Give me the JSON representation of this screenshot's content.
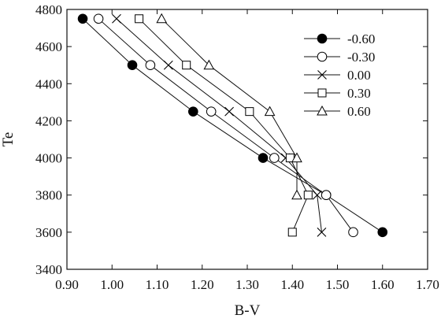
{
  "chart_data": {
    "type": "line",
    "title": "",
    "xlabel": "B-V",
    "ylabel": "Te",
    "xlim": [
      0.9,
      1.7
    ],
    "ylim": [
      3400,
      4800
    ],
    "xticks": [
      "0.90",
      "1.00",
      "1.10",
      "1.20",
      "1.30",
      "1.40",
      "1.50",
      "1.60",
      "1.70"
    ],
    "yticks": [
      "3400",
      "3600",
      "3800",
      "4000",
      "4200",
      "4400",
      "4600",
      "4800"
    ],
    "grid": false,
    "legend_position": "top-right",
    "series": [
      {
        "name": "-0.60",
        "marker": "filled-circle",
        "points": [
          {
            "x": 0.935,
            "y": 4750
          },
          {
            "x": 1.045,
            "y": 4500
          },
          {
            "x": 1.18,
            "y": 4250
          },
          {
            "x": 1.335,
            "y": 4000
          },
          {
            "x": 1.475,
            "y": 3800
          },
          {
            "x": 1.6,
            "y": 3600
          }
        ]
      },
      {
        "name": "-0.30",
        "marker": "open-circle",
        "points": [
          {
            "x": 0.97,
            "y": 4750
          },
          {
            "x": 1.085,
            "y": 4500
          },
          {
            "x": 1.22,
            "y": 4250
          },
          {
            "x": 1.36,
            "y": 4000
          },
          {
            "x": 1.475,
            "y": 3800
          },
          {
            "x": 1.535,
            "y": 3600
          }
        ]
      },
      {
        "name": "0.00",
        "marker": "cross",
        "points": [
          {
            "x": 1.01,
            "y": 4750
          },
          {
            "x": 1.125,
            "y": 4500
          },
          {
            "x": 1.26,
            "y": 4250
          },
          {
            "x": 1.385,
            "y": 4000
          },
          {
            "x": 1.455,
            "y": 3800
          },
          {
            "x": 1.465,
            "y": 3600
          }
        ]
      },
      {
        "name": "0.30",
        "marker": "open-square",
        "points": [
          {
            "x": 1.06,
            "y": 4750
          },
          {
            "x": 1.165,
            "y": 4500
          },
          {
            "x": 1.305,
            "y": 4250
          },
          {
            "x": 1.395,
            "y": 4000
          },
          {
            "x": 1.435,
            "y": 3800
          },
          {
            "x": 1.4,
            "y": 3600
          }
        ]
      },
      {
        "name": "0.60",
        "marker": "open-triangle",
        "points": [
          {
            "x": 1.11,
            "y": 4750
          },
          {
            "x": 1.215,
            "y": 4500
          },
          {
            "x": 1.35,
            "y": 4250
          },
          {
            "x": 1.41,
            "y": 4000
          },
          {
            "x": 1.41,
            "y": 3800
          }
        ]
      }
    ]
  }
}
